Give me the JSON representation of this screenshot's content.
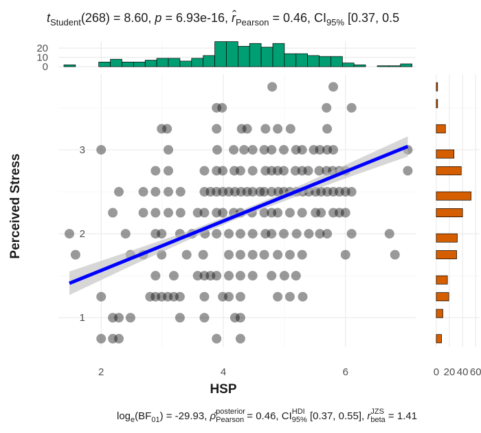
{
  "chart_data": [
    {
      "type": "scatter",
      "title": [
        "t",
        "Student",
        "(268) = 8.60, ",
        "p",
        " = 6.93e-16, ",
        "r̂",
        "Pearson",
        " = 0.46, CI",
        "95%",
        " [0.37, 0.5"
      ],
      "caption": [
        "log",
        "e",
        "(BF",
        "01",
        ") = -29.93, ",
        "ρ̂",
        "posterior",
        "Pearson",
        " = 0.46, CI",
        "HDI",
        "95%",
        " [0.37, 0.55], ",
        "r",
        "JZS",
        "beta",
        " = 1.41"
      ],
      "x_label": "HSP",
      "y_label": "Perceived Stress",
      "xlim": [
        1.3,
        7.15
      ],
      "ylim": [
        0.65,
        3.9
      ],
      "xticks": [
        2,
        4,
        6
      ],
      "yticks": [
        1,
        2,
        3
      ],
      "xminor": [
        3,
        5
      ],
      "yminor": [
        1.5,
        2.5,
        3.5
      ],
      "grid": true,
      "point_color": "#000000",
      "line_color": "#0000ff",
      "band_color": "#bdbdbd",
      "x": [
        4.8,
        5.8,
        3.89,
        3.98,
        5.69,
        6.1,
        2.99,
        3.08,
        3.89,
        4.3,
        4.39,
        4.69,
        4.89,
        5.1,
        5.7,
        2.0,
        3.1,
        3.9,
        4.17,
        4.34,
        4.48,
        4.67,
        4.79,
        4.99,
        5.19,
        5.29,
        5.48,
        5.58,
        5.7,
        5.8,
        7.02,
        2.89,
        3.1,
        3.69,
        3.89,
        3.99,
        4.18,
        4.28,
        4.48,
        4.69,
        4.79,
        4.89,
        4.99,
        5.18,
        5.29,
        5.39,
        5.57,
        5.69,
        5.79,
        5.9,
        6.0,
        7.02,
        2.29,
        2.69,
        2.89,
        3.1,
        3.3,
        3.69,
        3.79,
        3.89,
        3.99,
        4.09,
        4.19,
        4.29,
        4.39,
        4.48,
        4.6,
        4.67,
        4.79,
        4.9,
        4.99,
        5.09,
        5.2,
        5.3,
        5.4,
        5.51,
        5.6,
        5.7,
        5.8,
        5.9,
        6.0,
        6.1,
        2.19,
        2.69,
        2.89,
        3.1,
        3.3,
        3.58,
        3.69,
        3.89,
        3.99,
        4.17,
        4.28,
        4.47,
        4.67,
        4.79,
        4.89,
        5.09,
        5.29,
        5.51,
        5.6,
        5.8,
        5.9,
        6.0,
        1.48,
        2.4,
        2.89,
        2.99,
        3.29,
        3.49,
        3.7,
        3.89,
        4.09,
        4.28,
        4.48,
        4.69,
        4.79,
        4.99,
        5.2,
        5.4,
        5.58,
        5.7,
        6.1,
        6.72,
        1.58,
        2.48,
        2.69,
        2.99,
        3.4,
        3.67,
        4.09,
        4.28,
        4.48,
        4.67,
        4.89,
        5.09,
        5.29,
        6.0,
        6.81,
        2.89,
        3.19,
        3.58,
        3.69,
        3.79,
        3.89,
        4.09,
        4.28,
        4.48,
        4.79,
        5.0,
        5.19,
        2.0,
        2.8,
        2.89,
        2.99,
        3.09,
        3.19,
        3.29,
        3.69,
        3.99,
        4.09,
        4.28,
        4.89,
        5.09,
        5.3,
        2.19,
        2.29,
        2.48,
        3.29,
        3.69,
        4.19,
        4.28,
        2.0,
        2.19,
        2.29,
        3.89,
        4.28
      ],
      "y": [
        3.75,
        3.75,
        3.5,
        3.5,
        3.5,
        3.5,
        3.25,
        3.25,
        3.25,
        3.25,
        3.25,
        3.25,
        3.25,
        3.25,
        3.25,
        3,
        3,
        3,
        3,
        3,
        3,
        3,
        3,
        3,
        3,
        3,
        3,
        3,
        3,
        3,
        3,
        2.75,
        2.75,
        2.75,
        2.75,
        2.75,
        2.75,
        2.75,
        2.75,
        2.75,
        2.75,
        2.75,
        2.75,
        2.75,
        2.75,
        2.75,
        2.75,
        2.75,
        2.75,
        2.75,
        2.75,
        2.75,
        2.5,
        2.5,
        2.5,
        2.5,
        2.5,
        2.5,
        2.5,
        2.5,
        2.5,
        2.5,
        2.5,
        2.5,
        2.5,
        2.5,
        2.5,
        2.5,
        2.5,
        2.5,
        2.5,
        2.5,
        2.5,
        2.5,
        2.5,
        2.5,
        2.5,
        2.5,
        2.5,
        2.5,
        2.5,
        2.5,
        2.25,
        2.25,
        2.25,
        2.25,
        2.25,
        2.25,
        2.25,
        2.25,
        2.25,
        2.25,
        2.25,
        2.25,
        2.25,
        2.25,
        2.25,
        2.25,
        2.25,
        2.25,
        2.25,
        2.25,
        2.25,
        2.25,
        2,
        2,
        2,
        2,
        2,
        2,
        2,
        2,
        2,
        2,
        2,
        2,
        2,
        2,
        2,
        2,
        2,
        2,
        2,
        2,
        1.75,
        1.75,
        1.75,
        1.75,
        1.75,
        1.75,
        1.75,
        1.75,
        1.75,
        1.75,
        1.75,
        1.75,
        1.75,
        1.75,
        1.75,
        1.5,
        1.5,
        1.5,
        1.5,
        1.5,
        1.5,
        1.5,
        1.5,
        1.5,
        1.5,
        1.5,
        1.5,
        1.25,
        1.25,
        1.25,
        1.25,
        1.25,
        1.25,
        1.25,
        1.25,
        1.25,
        1.25,
        1.25,
        1.25,
        1.25,
        1.25,
        1,
        1,
        1,
        1,
        1,
        1,
        1,
        0.75,
        0.75,
        0.75,
        0.75,
        0.75
      ],
      "fit": {
        "x": [
          1.48,
          7.02
        ],
        "y": [
          1.41,
          3.04
        ]
      },
      "ci": {
        "x": [
          1.48,
          2.5,
          3.5,
          4.2,
          5,
          6,
          7.02
        ],
        "lower": [
          1.27,
          1.62,
          1.95,
          2.17,
          2.39,
          2.66,
          2.92
        ],
        "upper": [
          1.55,
          1.8,
          2.05,
          2.25,
          2.49,
          2.82,
          3.16
        ]
      }
    },
    {
      "type": "histogram",
      "orientation": "vertical",
      "color": "#009e73",
      "bins": [
        1.39,
        1.58,
        1.77,
        1.96,
        2.15,
        2.34,
        2.53,
        2.72,
        2.91,
        3.1,
        3.29,
        3.48,
        3.67,
        3.86,
        4.05,
        4.24,
        4.43,
        4.62,
        4.81,
        5.0,
        5.19,
        5.38,
        5.57,
        5.76,
        5.95,
        6.14,
        6.33,
        6.52,
        6.71,
        6.9,
        7.09
      ],
      "counts": [
        2,
        0,
        0,
        5,
        8,
        5,
        5,
        7,
        9,
        9,
        6,
        9,
        12,
        27,
        27,
        22,
        25,
        21,
        25,
        14,
        14,
        12,
        11,
        11,
        4,
        2,
        0,
        1,
        1,
        3
      ],
      "ylim": [
        -2.2,
        27.4
      ],
      "yticks": [
        0,
        10,
        20
      ]
    },
    {
      "type": "histogram",
      "orientation": "horizontal",
      "color": "#d55e00",
      "bins": [
        0.7,
        0.8,
        0.9,
        1.0,
        1.1,
        1.2,
        1.3,
        1.4,
        1.5,
        1.6,
        1.7,
        1.8,
        1.9,
        2.0,
        2.1,
        2.2,
        2.3,
        2.4,
        2.5,
        2.6,
        2.7,
        2.8,
        2.9,
        3.0,
        3.1,
        3.2,
        3.3,
        3.4,
        3.5,
        3.6,
        3.7,
        3.8
      ],
      "counts": [
        8,
        0,
        0,
        10,
        0,
        19,
        0,
        17,
        0,
        0,
        31,
        0,
        32,
        0,
        0,
        40,
        0,
        53,
        0,
        0,
        38,
        0,
        27,
        0,
        0,
        14,
        0,
        0,
        2,
        0,
        2
      ],
      "xlim": [
        -2,
        66
      ],
      "xticks": [
        0,
        20,
        40,
        60
      ]
    }
  ]
}
